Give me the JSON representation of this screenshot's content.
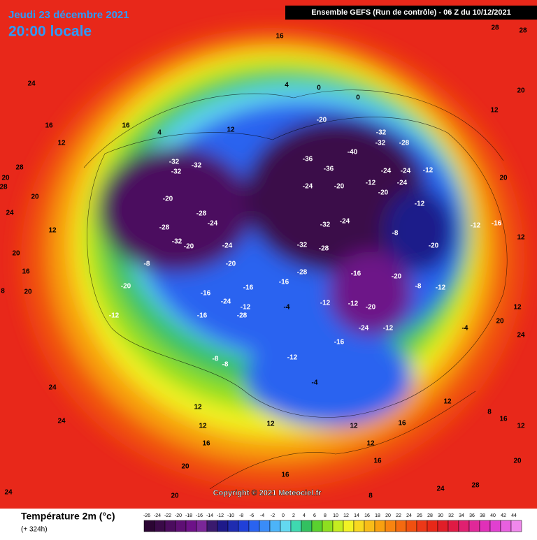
{
  "header": {
    "date": "Jeudi 23 décembre 2021",
    "time": "20:00 locale",
    "run": "Ensemble GEFS  (Run de contrôle)  -  06 Z du 10/12/2021",
    "copyright": "Copyright © 2021 Meteociel.fr"
  },
  "legend": {
    "title": "Température 2m (°c)",
    "subtitle": "(+ 324h)",
    "ticks": [
      -26,
      -24,
      -22,
      -20,
      -18,
      -16,
      -14,
      -12,
      -10,
      -8,
      -6,
      -4,
      -2,
      0,
      2,
      4,
      6,
      8,
      10,
      12,
      14,
      16,
      18,
      20,
      22,
      24,
      26,
      28,
      30,
      32,
      34,
      36,
      38,
      40,
      42,
      44
    ],
    "colors": [
      "#2b0533",
      "#3a0a48",
      "#4b0c5e",
      "#5e0f74",
      "#6d1288",
      "#7a2798",
      "#3a1a6e",
      "#1e1a8a",
      "#1f2cb0",
      "#2040d8",
      "#2a63f0",
      "#3a8cf8",
      "#4cb4f8",
      "#63d8f0",
      "#3fd8b0",
      "#33c060",
      "#5ad030",
      "#8ede20",
      "#c4ec20",
      "#f2f224",
      "#f8d820",
      "#f8bc18",
      "#f8a010",
      "#f88410",
      "#f46a10",
      "#f05010",
      "#ec3818",
      "#e82818",
      "#e01e28",
      "#e01a44",
      "#e02070",
      "#e02898",
      "#e030b8",
      "#e040d0",
      "#e860e0",
      "#f088ec"
    ]
  },
  "map": {
    "labels": [
      16,
      28,
      28,
      24,
      16,
      12,
      28,
      20,
      28,
      24,
      20,
      12,
      20,
      16,
      8,
      20,
      24,
      24,
      20,
      24,
      4,
      0,
      0,
      4,
      16,
      12,
      -20,
      -32,
      -32,
      -28,
      -40,
      -36,
      -32,
      -32,
      -32,
      -36,
      -24,
      -24,
      -12,
      -24,
      -20,
      -12,
      -20,
      -24,
      -20,
      -28,
      -28,
      -24,
      -32,
      -24,
      -8,
      -12,
      -12,
      -16,
      -20,
      -32,
      -20,
      -24,
      -32,
      -28,
      -8,
      -20,
      -28,
      -16,
      -20,
      -8,
      -12,
      -20,
      -16,
      -16,
      -16,
      -12,
      -24,
      -12,
      -4,
      -12,
      -12,
      -20,
      -16,
      -28,
      -16,
      -24,
      -12,
      -4,
      -12,
      -8,
      -8,
      -4,
      12,
      12,
      16,
      12,
      12,
      12,
      16,
      16,
      12,
      16,
      12,
      20,
      20,
      8,
      24,
      28,
      12,
      24,
      20,
      12,
      12,
      20,
      16,
      20,
      8
    ]
  }
}
